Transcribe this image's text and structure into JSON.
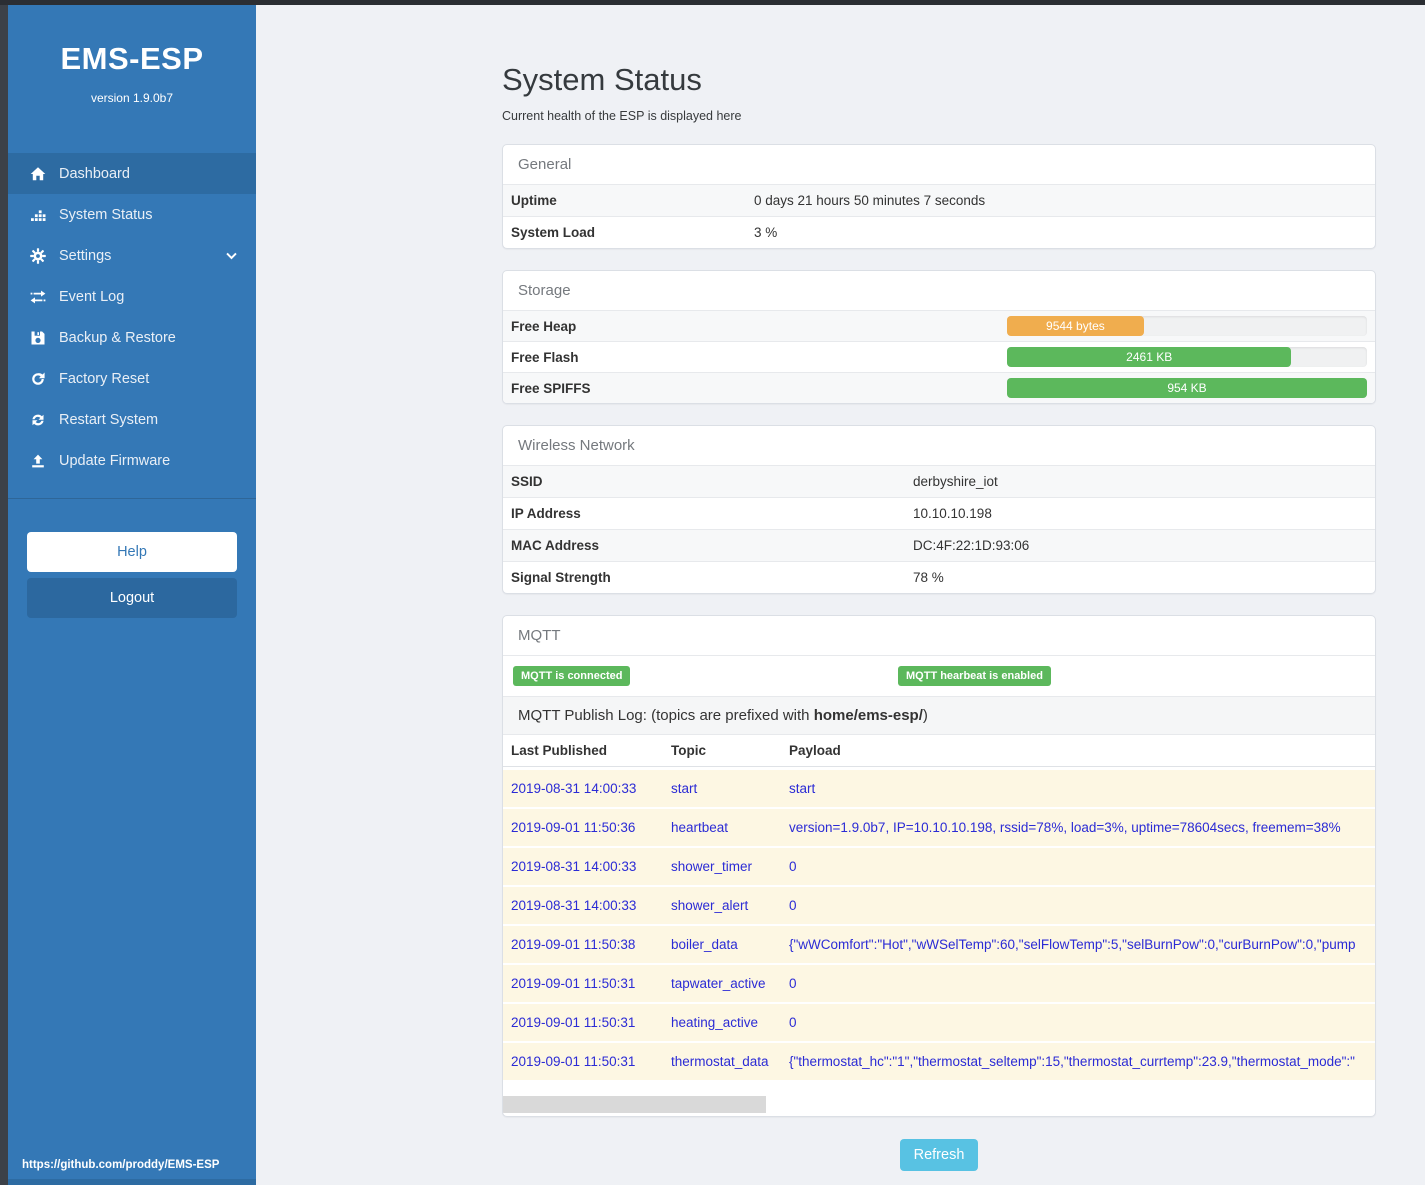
{
  "colors": {
    "sidebar_blue": "#3478b6",
    "status_green": "#5cb85c",
    "warning_orange": "#f0ad4e",
    "info_blue": "#58c2e3",
    "log_text_blue": "#2b2bd5"
  },
  "sidebar": {
    "title": "EMS-ESP",
    "version": "version 1.9.0b7",
    "items": [
      {
        "label": "Dashboard",
        "icon": "home-icon",
        "active": true
      },
      {
        "label": "System Status",
        "icon": "sitemap-icon"
      },
      {
        "label": "Settings",
        "icon": "gear-icon",
        "chevron": true
      },
      {
        "label": "Event Log",
        "icon": "exchange-icon"
      },
      {
        "label": "Backup & Restore",
        "icon": "save-icon"
      },
      {
        "label": "Factory Reset",
        "icon": "redo-icon"
      },
      {
        "label": "Restart System",
        "icon": "sync-icon"
      },
      {
        "label": "Update Firmware",
        "icon": "upload-icon"
      }
    ],
    "help_label": "Help",
    "logout_label": "Logout",
    "footer_link": "https://github.com/proddy/EMS-ESP"
  },
  "header": {
    "title": "System Status",
    "subtitle": "Current health of the ESP is displayed here"
  },
  "panels": {
    "general": {
      "title": "General",
      "rows": [
        {
          "label": "Uptime",
          "value": "0 days 21 hours 50 minutes 7 seconds"
        },
        {
          "label": "System Load",
          "value": "3 %"
        }
      ]
    },
    "storage": {
      "title": "Storage",
      "rows": [
        {
          "label": "Free Heap",
          "bar_label": "9544 bytes",
          "percent": 38,
          "color": "#f0ad4e"
        },
        {
          "label": "Free Flash",
          "bar_label": "2461 KB",
          "percent": 79,
          "color": "#5cb85c"
        },
        {
          "label": "Free SPIFFS",
          "bar_label": "954 KB",
          "percent": 100,
          "color": "#5cb85c"
        }
      ]
    },
    "wireless": {
      "title": "Wireless Network",
      "rows": [
        {
          "label": "SSID",
          "value": "derbyshire_iot"
        },
        {
          "label": "IP Address",
          "value": "10.10.10.198"
        },
        {
          "label": "MAC Address",
          "value": "DC:4F:22:1D:93:06"
        },
        {
          "label": "Signal Strength",
          "value": "78 %"
        }
      ]
    },
    "mqtt": {
      "title": "MQTT",
      "badges": [
        "MQTT is connected",
        "MQTT hearbeat is enabled"
      ],
      "publish_log_prefix": "MQTT Publish Log: (topics are prefixed with ",
      "publish_log_bold": "home/ems-esp/",
      "publish_log_suffix": ")",
      "table": {
        "headers": [
          "Last Published",
          "Topic",
          "Payload"
        ],
        "rows": [
          [
            "2019-08-31 14:00:33",
            "start",
            "start"
          ],
          [
            "2019-09-01 11:50:36",
            "heartbeat",
            "version=1.9.0b7, IP=10.10.10.198, rssid=78%, load=3%, uptime=78604secs, freemem=38%"
          ],
          [
            "2019-08-31 14:00:33",
            "shower_timer",
            "0"
          ],
          [
            "2019-08-31 14:00:33",
            "shower_alert",
            "0"
          ],
          [
            "2019-09-01 11:50:38",
            "boiler_data",
            "{\"wWComfort\":\"Hot\",\"wWSelTemp\":60,\"selFlowTemp\":5,\"selBurnPow\":0,\"curBurnPow\":0,\"pump"
          ],
          [
            "2019-09-01 11:50:31",
            "tapwater_active",
            "0"
          ],
          [
            "2019-09-01 11:50:31",
            "heating_active",
            "0"
          ],
          [
            "2019-09-01 11:50:31",
            "thermostat_data",
            "{\"thermostat_hc\":\"1\",\"thermostat_seltemp\":15,\"thermostat_currtemp\":23.9,\"thermostat_mode\":\""
          ]
        ]
      }
    }
  },
  "refresh_label": "Refresh"
}
